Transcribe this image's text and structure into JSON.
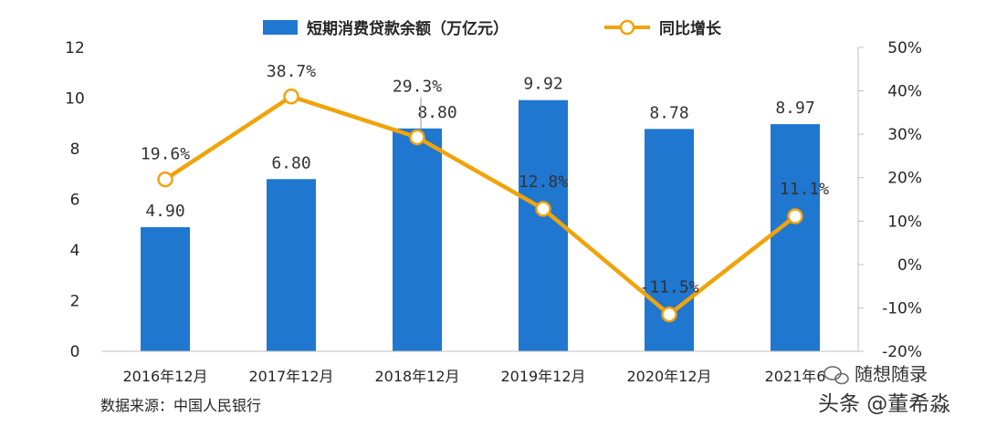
{
  "chart_data": {
    "type": "bar",
    "categories": [
      "2016年12月",
      "2017年12月",
      "2018年12月",
      "2019年12月",
      "2020年12月",
      "2021年6"
    ],
    "series": [
      {
        "name": "短期消费贷款余额（万亿元）",
        "type": "bar",
        "axis": "left",
        "values": [
          4.9,
          6.8,
          8.8,
          9.92,
          8.78,
          8.97
        ],
        "labels": [
          "4.90",
          "6.80",
          "8.80",
          "9.92",
          "8.78",
          "8.97"
        ],
        "color": "#1F77D0"
      },
      {
        "name": "同比增长",
        "type": "line",
        "axis": "right",
        "values": [
          19.6,
          38.7,
          29.3,
          12.8,
          -11.5,
          11.1
        ],
        "labels": [
          "19.6%",
          "38.7%",
          "29.3%",
          "12.8%",
          "-11.5%",
          "11.1%"
        ],
        "color": "#F0A30A"
      }
    ],
    "y_left": {
      "range": [
        0,
        12
      ],
      "ticks": [
        0,
        2,
        4,
        6,
        8,
        10,
        12
      ],
      "tick_labels": [
        "0",
        "2",
        "4",
        "6",
        "8",
        "10",
        "12"
      ]
    },
    "y_right": {
      "range": [
        -20,
        50
      ],
      "ticks": [
        -20,
        -10,
        0,
        10,
        20,
        30,
        40,
        50
      ],
      "tick_labels": [
        "-20%",
        "-10%",
        "0%",
        "10%",
        "20%",
        "30%",
        "40%",
        "50%"
      ]
    },
    "grid": false,
    "legend_position": "top-center",
    "source": "数据来源：中国人民银行"
  },
  "watermarks": {
    "wechat": "随想随录",
    "toutiao": "头条 @董希淼"
  }
}
